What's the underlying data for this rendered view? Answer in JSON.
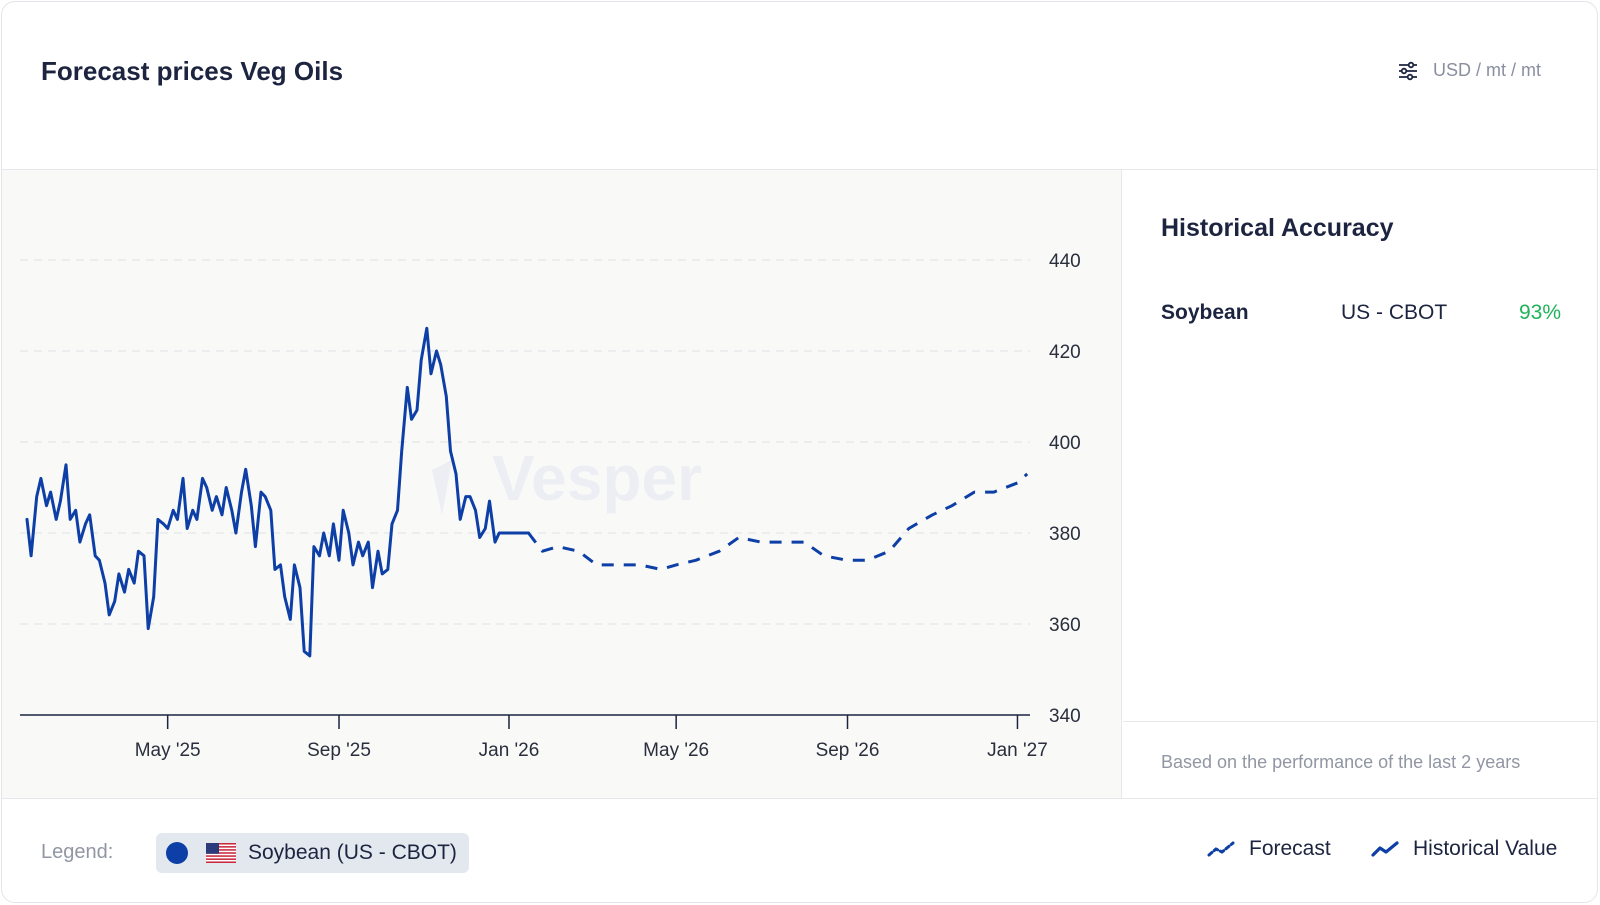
{
  "header": {
    "title": "Forecast prices Veg Oils",
    "units": "USD / mt / mt",
    "settings_icon": "sliders-icon"
  },
  "sidebar": {
    "title": "Historical Accuracy",
    "rows": [
      {
        "name": "Soybean",
        "market": "US - CBOT",
        "value": "93%"
      }
    ],
    "note": "Based on the performance of the last 2 years"
  },
  "legend": {
    "label": "Legend:",
    "chip_label": "Soybean (US - CBOT)",
    "forecast_label": "Forecast",
    "historical_label": "Historical Value"
  },
  "colors": {
    "series": "#0d3fa6",
    "positive": "#1fb35a",
    "muted": "#9096a3"
  },
  "chart_data": {
    "type": "line",
    "title": "Forecast prices Veg Oils",
    "xlabel": "",
    "ylabel": "",
    "ylim": [
      340,
      440
    ],
    "yticks": [
      340,
      360,
      380,
      400,
      420,
      440
    ],
    "xlim": [
      "2025-01-15",
      "2027-01-10"
    ],
    "xticks": [
      {
        "date": "2025-05-01",
        "label": "May '25"
      },
      {
        "date": "2025-09-01",
        "label": "Sep '25"
      },
      {
        "date": "2026-01-01",
        "label": "Jan '26"
      },
      {
        "date": "2026-05-01",
        "label": "May '26"
      },
      {
        "date": "2026-09-01",
        "label": "Sep '26"
      },
      {
        "date": "2027-01-01",
        "label": "Jan '27"
      }
    ],
    "grid": true,
    "legend_position": "bottom",
    "series": [
      {
        "name": "Soybean (US - CBOT)",
        "style": "solid",
        "x": [
          "2025-01-20",
          "2025-01-23",
          "2025-01-27",
          "2025-01-30",
          "2025-02-03",
          "2025-02-06",
          "2025-02-10",
          "2025-02-13",
          "2025-02-17",
          "2025-02-20",
          "2025-02-24",
          "2025-02-27",
          "2025-03-03",
          "2025-03-06",
          "2025-03-10",
          "2025-03-13",
          "2025-03-17",
          "2025-03-20",
          "2025-03-24",
          "2025-03-27",
          "2025-03-31",
          "2025-04-03",
          "2025-04-07",
          "2025-04-10",
          "2025-04-14",
          "2025-04-17",
          "2025-04-21",
          "2025-04-24",
          "2025-04-28",
          "2025-05-01",
          "2025-05-05",
          "2025-05-08",
          "2025-05-12",
          "2025-05-15",
          "2025-05-19",
          "2025-05-22",
          "2025-05-26",
          "2025-05-29",
          "2025-06-02",
          "2025-06-05",
          "2025-06-09",
          "2025-06-12",
          "2025-06-16",
          "2025-06-19",
          "2025-06-23",
          "2025-06-26",
          "2025-06-30",
          "2025-07-03",
          "2025-07-07",
          "2025-07-10",
          "2025-07-14",
          "2025-07-17",
          "2025-07-21",
          "2025-07-24",
          "2025-07-28",
          "2025-07-31",
          "2025-08-04",
          "2025-08-07",
          "2025-08-11",
          "2025-08-14",
          "2025-08-18",
          "2025-08-21",
          "2025-08-25",
          "2025-08-28",
          "2025-09-01",
          "2025-09-04",
          "2025-09-08",
          "2025-09-11",
          "2025-09-15",
          "2025-09-18",
          "2025-09-22",
          "2025-09-25",
          "2025-09-29",
          "2025-10-02",
          "2025-10-06",
          "2025-10-09",
          "2025-10-13",
          "2025-10-16",
          "2025-10-20",
          "2025-10-23",
          "2025-10-27",
          "2025-10-30",
          "2025-11-03",
          "2025-11-06",
          "2025-11-10",
          "2025-11-13",
          "2025-11-17",
          "2025-11-20",
          "2025-11-24",
          "2025-11-27",
          "2025-12-01",
          "2025-12-04",
          "2025-12-08",
          "2025-12-11",
          "2025-12-15",
          "2025-12-18",
          "2025-12-22",
          "2025-12-25",
          "2025-12-29",
          "2026-01-01",
          "2026-01-05",
          "2026-01-08",
          "2026-01-12",
          "2026-01-15"
        ],
        "y": [
          383,
          375,
          388,
          392,
          386,
          389,
          383,
          387,
          395,
          383,
          385,
          378,
          382,
          384,
          375,
          374,
          369,
          362,
          365,
          371,
          367,
          372,
          369,
          376,
          375,
          359,
          366,
          383,
          382,
          381,
          385,
          383,
          392,
          381,
          385,
          383,
          392,
          390,
          385,
          388,
          384,
          390,
          385,
          380,
          389,
          394,
          386,
          377,
          389,
          388,
          385,
          372,
          373,
          366,
          361,
          373,
          368,
          354,
          353,
          377,
          375,
          380,
          375,
          382,
          374,
          385,
          380,
          373,
          378,
          375,
          378,
          368,
          376,
          371,
          372,
          382,
          385,
          398,
          412,
          405,
          407,
          418,
          425,
          415,
          420,
          417,
          410,
          398,
          393,
          383,
          388,
          388,
          385,
          379,
          381,
          387,
          378,
          380,
          380,
          380,
          380,
          380,
          380,
          380
        ],
        "values_note_unused": ""
      },
      {
        "name": "Forecast",
        "style": "dashed",
        "x": [
          "2026-01-15",
          "2026-01-25",
          "2026-02-05",
          "2026-02-20",
          "2026-03-05",
          "2026-03-20",
          "2026-04-05",
          "2026-04-20",
          "2026-05-01",
          "2026-05-15",
          "2026-06-01",
          "2026-06-15",
          "2026-07-01",
          "2026-07-15",
          "2026-08-01",
          "2026-08-15",
          "2026-09-01",
          "2026-09-15",
          "2026-10-01",
          "2026-10-15",
          "2026-11-01",
          "2026-11-15",
          "2026-12-01",
          "2026-12-15",
          "2027-01-01",
          "2027-01-08"
        ],
        "y": [
          380,
          376,
          377,
          376,
          373,
          373,
          373,
          372,
          373,
          374,
          376,
          379,
          378,
          378,
          378,
          375,
          374,
          374,
          376,
          381,
          384,
          386,
          389,
          389,
          391,
          393
        ]
      }
    ]
  }
}
